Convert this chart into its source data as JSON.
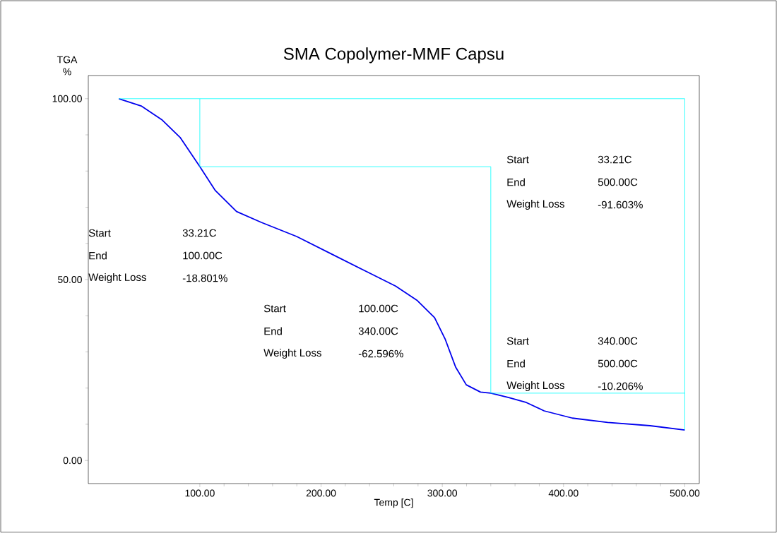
{
  "chart_data": {
    "type": "line",
    "title": "SMA Copolymer-MMF Capsu",
    "xlabel": "Temp  [C]",
    "ylabel": "TGA %",
    "xlim": [
      8,
      512
    ],
    "ylim": [
      -6.4,
      106.4
    ],
    "xticks": [
      {
        "value": 100,
        "label": "100.00"
      },
      {
        "value": 200,
        "label": "200.00"
      },
      {
        "value": 300,
        "label": "300.00"
      },
      {
        "value": 400,
        "label": "400.00"
      },
      {
        "value": 500,
        "label": "500.00"
      }
    ],
    "yticks": [
      {
        "value": 0,
        "label": "0.00"
      },
      {
        "value": 50,
        "label": "50.00"
      },
      {
        "value": 100,
        "label": "100.00"
      }
    ],
    "grid": false,
    "marker": "none",
    "line_style": "solid",
    "series": [
      {
        "color": "#0000ee",
        "x": [
          33.21,
          51.6,
          69,
          83.7,
          100,
          112.8,
          130.3,
          150.7,
          179.9,
          209,
          238.2,
          261.5,
          279,
          293.6,
          302.3,
          311,
          319.8,
          331.5,
          340,
          354.8,
          369.4,
          384,
          407.3,
          436.4,
          471.4,
          500
        ],
        "values": [
          100,
          98,
          94.1,
          89.3,
          81.2,
          74.6,
          68.8,
          65.8,
          61.9,
          57,
          52.1,
          48.2,
          44.3,
          39.5,
          33.6,
          25.8,
          20.9,
          18.9,
          18.6,
          17.4,
          16,
          13.7,
          11.7,
          10.5,
          9.6,
          8.4
        ]
      },
      {
        "color": "#00ffff",
        "x": [
          33.21,
          500,
          500
        ],
        "values": [
          100,
          100,
          8.4
        ]
      },
      {
        "color": "#00ffff",
        "x": [
          100,
          100,
          340,
          340,
          500
        ],
        "values": [
          100,
          81.2,
          81.2,
          18.6,
          18.6
        ]
      }
    ],
    "annotations": [
      "Start",
      "33.21C",
      "End",
      "100.00C",
      "Weight Loss",
      "-18.801%",
      "Start",
      "100.00C",
      "End",
      "340.00C",
      "Weight Loss",
      "-62.596%",
      "Start",
      "33.21C",
      "End",
      "500.00C",
      "Weight Loss",
      "-91.603%",
      "Start",
      "340.00C",
      "End",
      "500.00C",
      "Weight Loss",
      "-10.206%"
    ]
  }
}
